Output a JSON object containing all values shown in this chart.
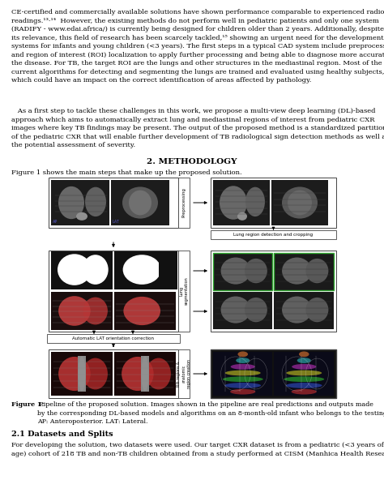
{
  "background_color": "#ffffff",
  "fig_bg": "#f8f8f8",
  "para1": "CE-certified and commercially available solutions have shown performance comparable to experienced radiologist\nreadings.¹³·¹⁴  However, the existing methods do not perform well in pediatric patients and only one system\n(RADIFY - www.edai.africa/) is currently being designed for children older than 2 years. Additionally, despite\nits relevance, this field of research has been scarcely tackled,¹⁵ showing an urgent need for the development of AI\nsystems for infants and young children (<3 years). The first steps in a typical CAD system include preprocessing\nand region of interest (ROI) localization to apply further processing and being able to diagnose more accurately\nthe disease. For TB, the target ROI are the lungs and other structures in the mediastinal region. Most of the\ncurrent algorithms for detecting and segmenting the lungs are trained and evaluated using healthy subjects,\nwhich could have an impact on the correct identification of areas affected by pathology.",
  "para2": "   As a first step to tackle these challenges in this work, we propose a multi-view deep learning (DL)-based\napproach which aims to automatically extract lung and mediastinal regions of interest from pediatric CXR\nimages where key TB findings may be present. The output of the proposed method is a standardized partition\nof the pediatric CXR that will enable further development of TB radiological sign detection methods as well as\nthe potential assessment of severity.",
  "section_title": "2. METHODOLOGY",
  "fig_intro": "Figure 1 shows the main steps that make up the proposed solution.",
  "fig_caption_bold": "Figure 1:",
  "fig_caption_rest": " Pipeline of the proposed solution. Images shown in the pipeline are real predictions and outputs made\nby the corresponding DL-based models and algorithms on an 8-month-old infant who belongs to the testing set.\nAP: Anteroposterior. LAT: Lateral.",
  "sec21_title": "2.1 Datasets and Splits",
  "sec21_text": "For developing the solution, two datasets were used. Our target CXR dataset is from a pediatric (<3 years of\nage) cohort of 218 TB and non-TB children obtained from a study performed at CISM (Manhica Health Research",
  "label_preprocessing": "Preprocessing",
  "label_lung_detection": "Lung region detection and cropping",
  "label_classifier": "Lung\nsegmentation",
  "label_auto_lat": "Automatic LAT orientation correction",
  "label_rib": "Rib regions &\nanatomic\nregion creation",
  "edge_color": "#444444",
  "text_fontsize": 6.0,
  "sec_fontsize": 7.5
}
